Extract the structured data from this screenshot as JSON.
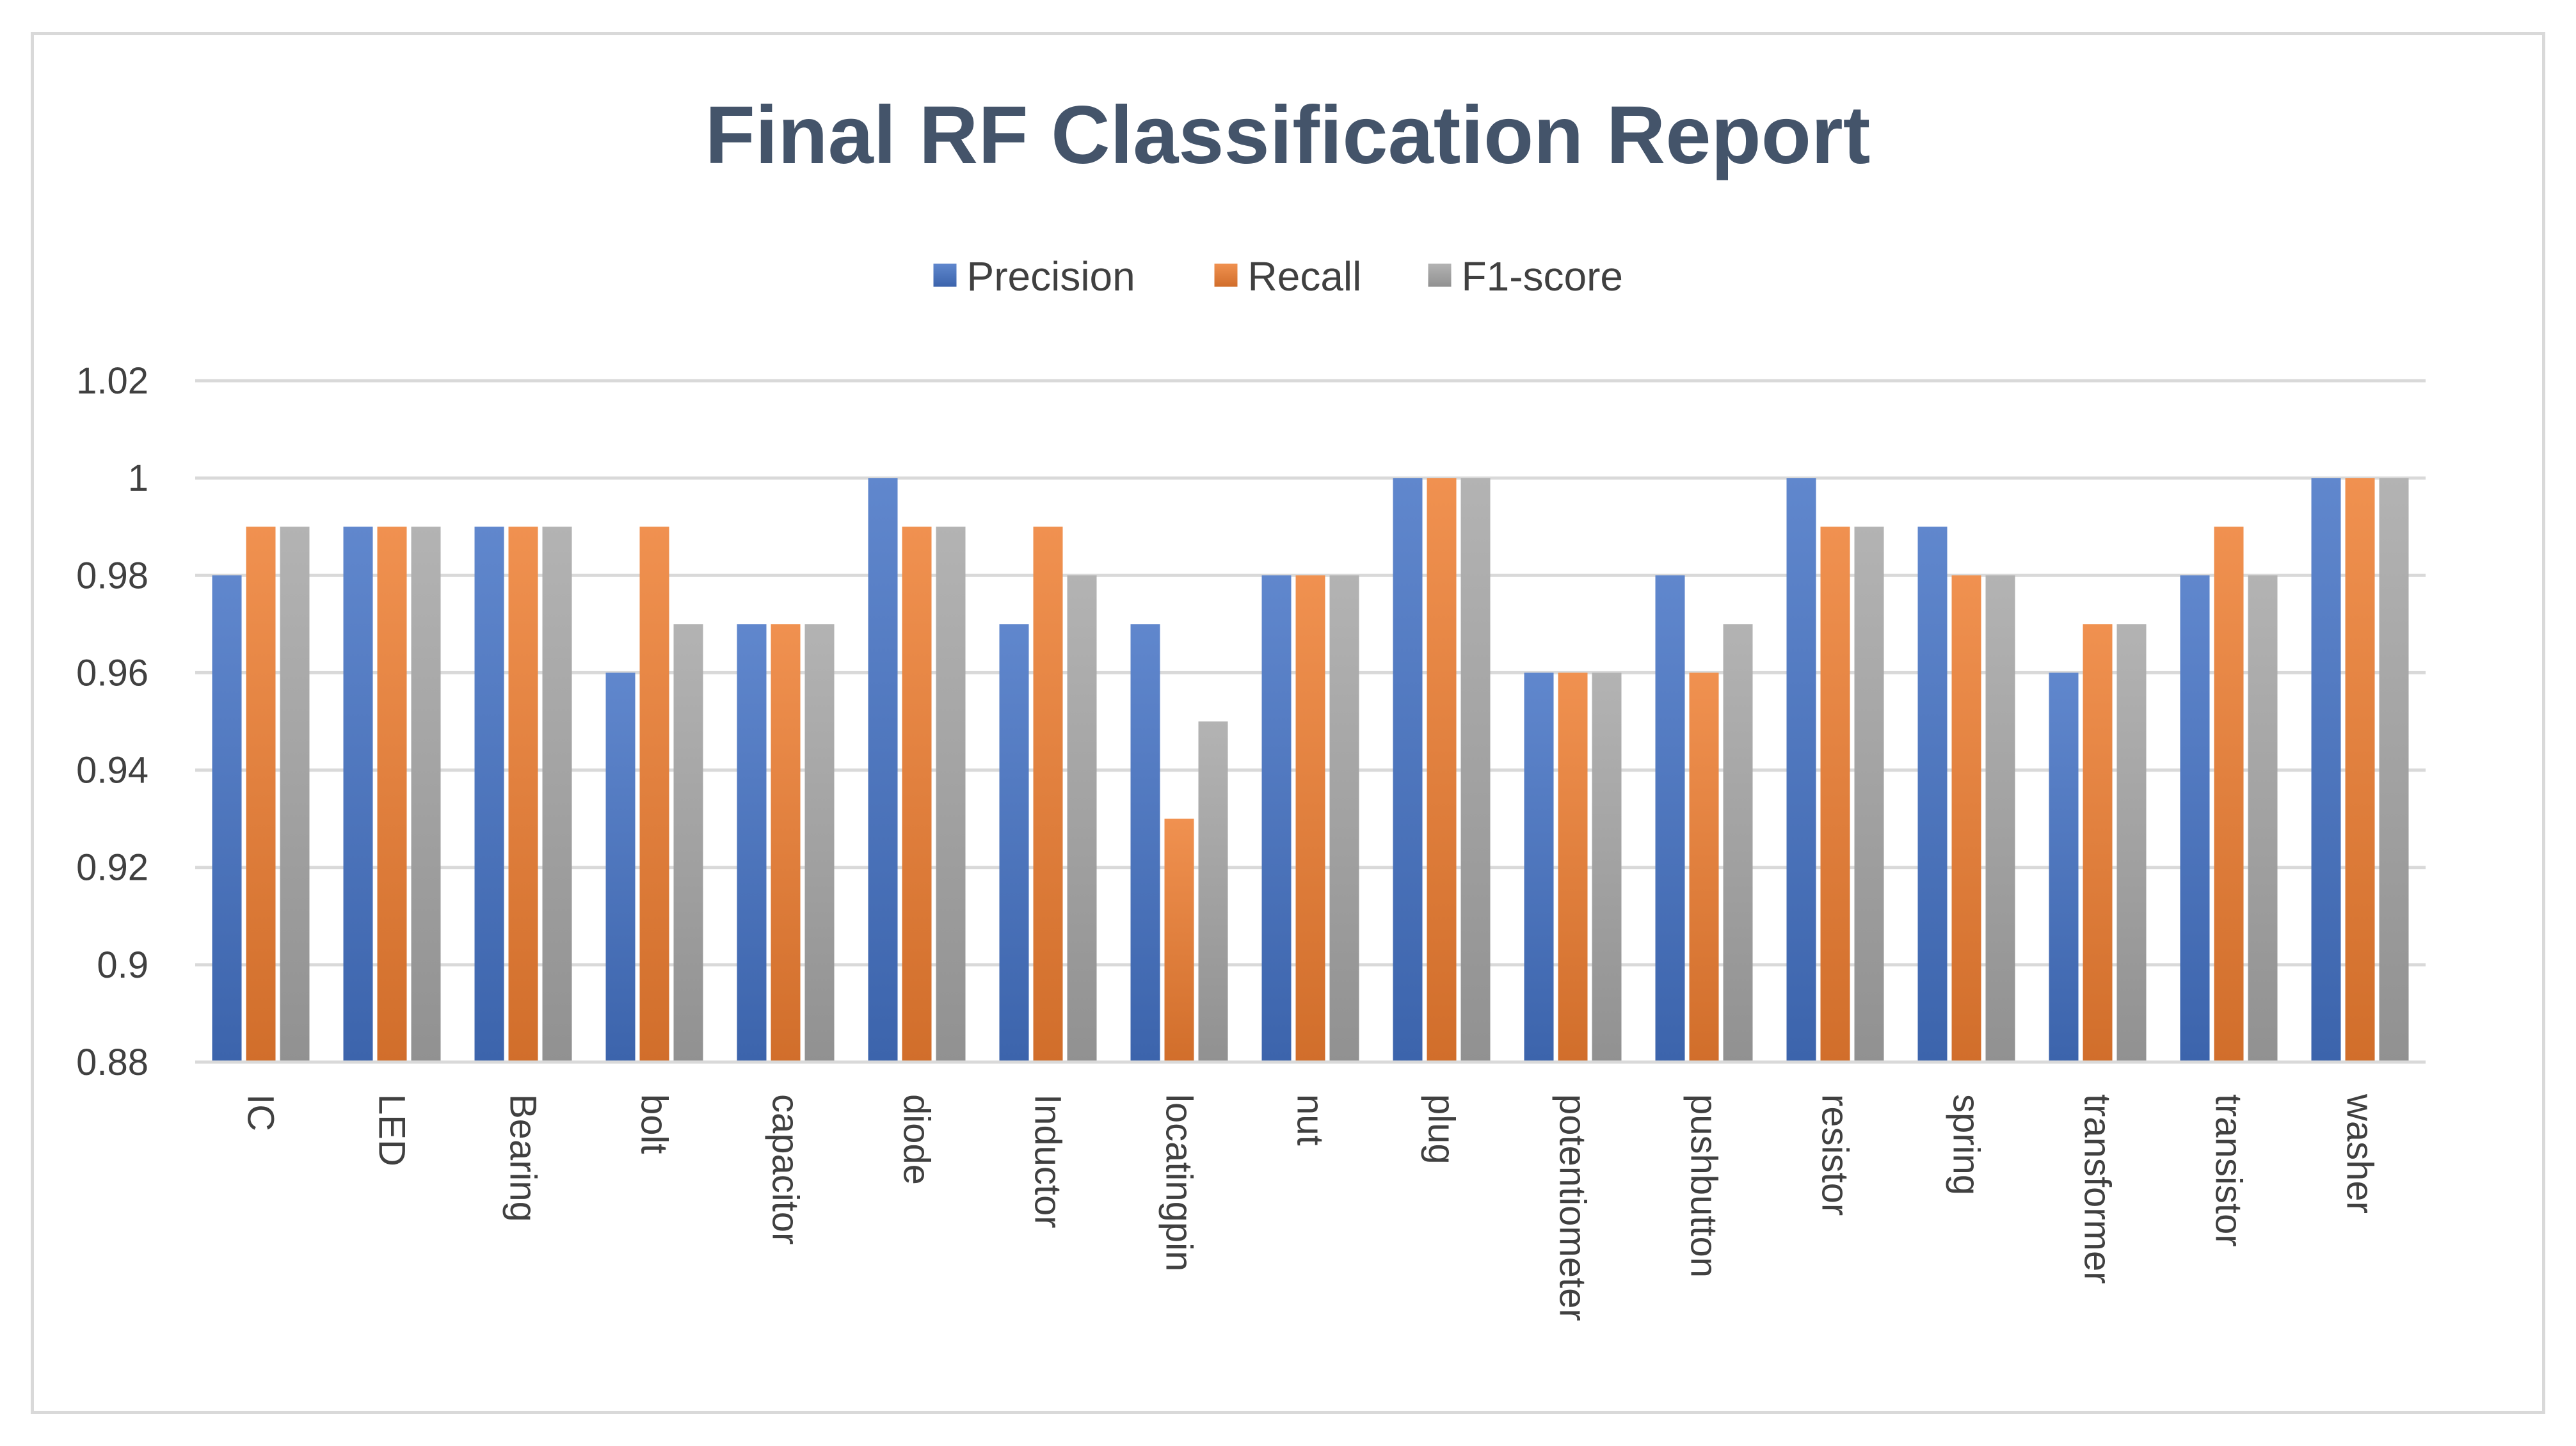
{
  "chart_data": {
    "type": "bar",
    "title": "Final RF Classification Report",
    "xlabel": "",
    "ylabel": "",
    "ylim": [
      0.88,
      1.02
    ],
    "yticks": [
      1.02,
      1,
      0.98,
      0.96,
      0.94,
      0.92,
      0.9,
      0.88
    ],
    "grid": true,
    "legend_position": "top-center",
    "categories": [
      "IC",
      "LED",
      "Bearing",
      "bolt",
      "capacitor",
      "diode",
      "Inductor",
      "locatingpin",
      "nut",
      "plug",
      "potentiometer",
      "pushbutton",
      "resistor",
      "spring",
      "transformer",
      "transistor",
      "washer"
    ],
    "series": [
      {
        "name": "Precision",
        "color": "#4472c4",
        "values": [
          0.98,
          0.99,
          0.99,
          0.96,
          0.97,
          1.0,
          0.97,
          0.97,
          0.98,
          1.0,
          0.96,
          0.98,
          1.0,
          0.99,
          0.96,
          0.98,
          1.0
        ]
      },
      {
        "name": "Recall",
        "color": "#ed7d31",
        "values": [
          0.99,
          0.99,
          0.99,
          0.99,
          0.97,
          0.99,
          0.99,
          0.93,
          0.98,
          1.0,
          0.96,
          0.96,
          0.99,
          0.98,
          0.97,
          0.99,
          1.0
        ]
      },
      {
        "name": "F1-score",
        "color": "#a5a5a5",
        "values": [
          0.99,
          0.99,
          0.99,
          0.97,
          0.97,
          0.99,
          0.98,
          0.95,
          0.98,
          1.0,
          0.96,
          0.97,
          0.99,
          0.98,
          0.97,
          0.98,
          1.0
        ]
      }
    ]
  }
}
